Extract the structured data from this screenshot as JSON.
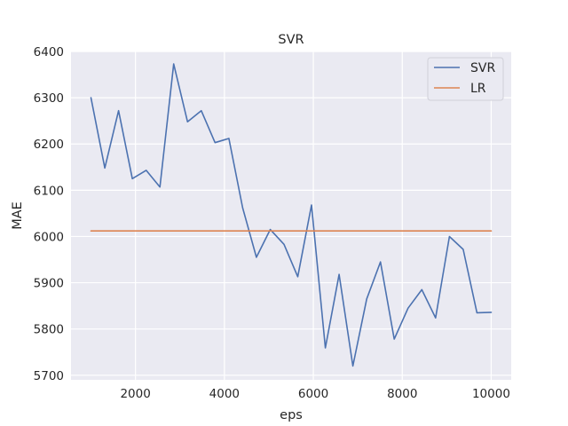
{
  "chart_data": {
    "type": "line",
    "title": "SVR",
    "xlabel": "eps",
    "ylabel": "MAE",
    "xlim": [
      550,
      10450
    ],
    "ylim": [
      5690,
      6400
    ],
    "xticks": [
      2000,
      4000,
      6000,
      8000,
      10000
    ],
    "yticks": [
      5700,
      5800,
      5900,
      6000,
      6100,
      6200,
      6300,
      6400
    ],
    "grid": true,
    "legend_position": "top-right",
    "series": [
      {
        "name": "SVR",
        "color": "#4c72b0",
        "x": [
          1000,
          1310,
          1620,
          1930,
          2240,
          2550,
          2860,
          3170,
          3480,
          3790,
          4100,
          4410,
          4720,
          5030,
          5340,
          5650,
          5960,
          6270,
          6580,
          6890,
          7200,
          7510,
          7820,
          8130,
          8440,
          8750,
          9060,
          9370,
          9680,
          10000
        ],
        "y": [
          6300,
          6148,
          6272,
          6125,
          6143,
          6107,
          6373,
          6248,
          6272,
          6203,
          6212,
          6062,
          5955,
          6015,
          5983,
          5913,
          6068,
          5759,
          5918,
          5720,
          5865,
          5945,
          5778,
          5845,
          5885,
          5824,
          6000,
          5972,
          5835,
          5836
        ]
      },
      {
        "name": "LR",
        "color": "#dd8452",
        "x": [
          1000,
          10000
        ],
        "y": [
          6012,
          6012
        ]
      }
    ]
  }
}
